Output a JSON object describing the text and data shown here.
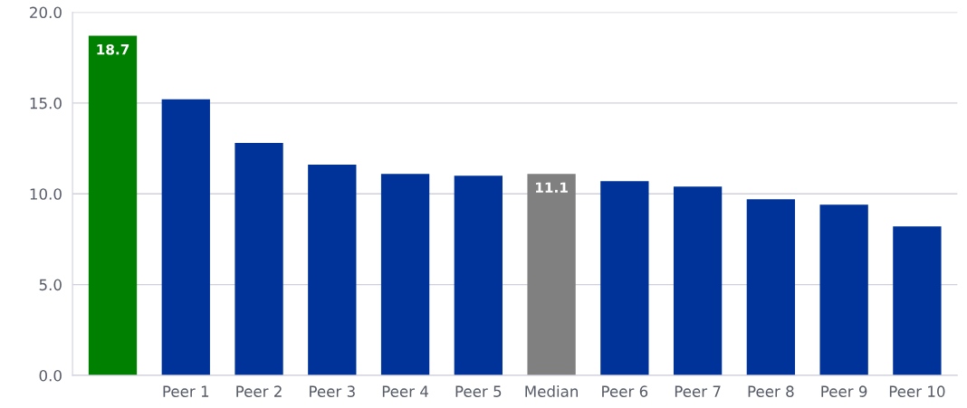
{
  "chart_data": {
    "type": "bar",
    "categories": [
      null,
      "Peer 1",
      "Peer 2",
      "Peer 3",
      "Peer 4",
      "Peer 5",
      "Median",
      "Peer 6",
      "Peer 7",
      "Peer 8",
      "Peer 9",
      "Peer 10"
    ],
    "values": [
      18.7,
      15.2,
      12.8,
      11.6,
      11.1,
      11.0,
      11.1,
      10.7,
      10.4,
      9.7,
      9.4,
      8.2
    ],
    "colors": [
      "#008000",
      "#003399",
      "#003399",
      "#003399",
      "#003399",
      "#003399",
      "#808080",
      "#003399",
      "#003399",
      "#003399",
      "#003399",
      "#003399"
    ],
    "value_labels": [
      "18.7",
      null,
      null,
      null,
      null,
      null,
      "11.1",
      null,
      null,
      null,
      null,
      null
    ],
    "ylim": [
      0,
      20
    ],
    "yticks": [
      {
        "value": 0,
        "label": "0.0"
      },
      {
        "value": 5,
        "label": "5.0"
      },
      {
        "value": 10,
        "label": "10.0"
      },
      {
        "value": 15,
        "label": "15.0"
      },
      {
        "value": 20,
        "label": "20.0"
      }
    ],
    "grid": "y"
  }
}
